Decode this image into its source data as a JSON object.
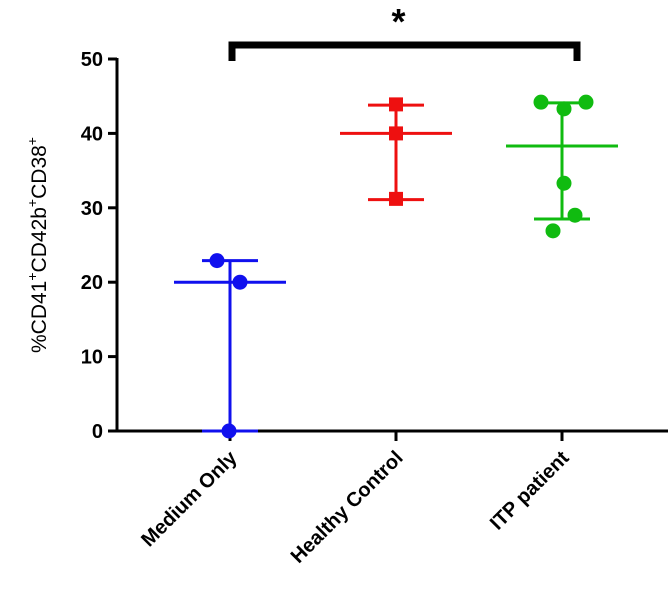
{
  "chart_data": {
    "type": "scatter",
    "ylabel_parts": [
      "%CD41",
      "+",
      "CD42b",
      "+",
      "CD38",
      "+"
    ],
    "categories": [
      "Medium Only",
      "Healthy Control",
      "ITP patient"
    ],
    "series": [
      {
        "color": "#1010ee",
        "marker": "circle",
        "values": [
          22.9,
          20,
          0
        ],
        "center": 20,
        "error_low": 0,
        "error_high": 22.9
      },
      {
        "color": "#ee1010",
        "marker": "square",
        "values": [
          43.9,
          40,
          31.2
        ],
        "center": 40,
        "error_low": 31.1,
        "error_high": 43.8
      },
      {
        "color": "#10bb10",
        "marker": "circle",
        "values": [
          44.2,
          44.2,
          43.3,
          33.3,
          29,
          26.9
        ],
        "center": 38.3,
        "error_low": 28.5,
        "error_high": 44.1
      }
    ],
    "ylim": [
      0,
      50
    ],
    "yticks": [
      0,
      10,
      20,
      30,
      40,
      50
    ],
    "annotations": [
      {
        "text": "*",
        "from": "Medium Only",
        "to": "ITP patient"
      }
    ]
  }
}
